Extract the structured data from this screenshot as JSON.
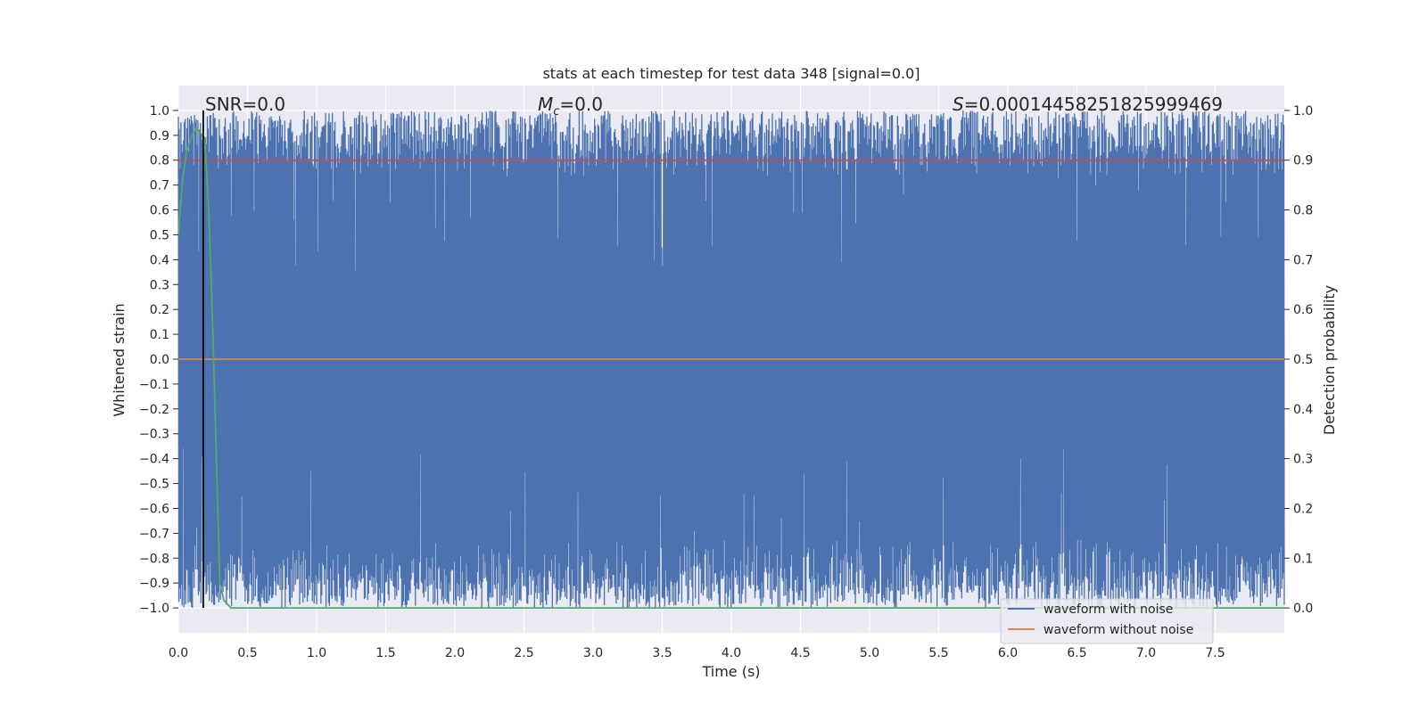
{
  "chart_data": {
    "type": "line",
    "title": "stats at each timestep for test data 348 [signal=0.0]",
    "xlabel": "Time (s)",
    "ylabel": "Whitened strain",
    "y2label": "Detection probability",
    "xlim": [
      0.0,
      8.0
    ],
    "ylim": [
      -1.1,
      1.1
    ],
    "y2lim": [
      -0.05,
      1.05
    ],
    "xticks": [
      0.0,
      0.5,
      1.0,
      1.5,
      2.0,
      2.5,
      3.0,
      3.5,
      4.0,
      4.5,
      5.0,
      5.5,
      6.0,
      6.5,
      7.0,
      7.5
    ],
    "xtick_labels": [
      "0.0",
      "0.5",
      "1.0",
      "1.5",
      "2.0",
      "2.5",
      "3.0",
      "3.5",
      "4.0",
      "4.5",
      "5.0",
      "5.5",
      "6.0",
      "6.5",
      "7.0",
      "7.5"
    ],
    "yticks": [
      1.0,
      0.9,
      0.8,
      0.7,
      0.6,
      0.5,
      0.4,
      0.3,
      0.2,
      0.1,
      0.0,
      -0.1,
      -0.2,
      -0.3,
      -0.4,
      -0.5,
      -0.6,
      -0.7,
      -0.8,
      -0.9,
      -1.0
    ],
    "ytick_labels": [
      "1.0",
      "0.9",
      "0.8",
      "0.7",
      "0.6",
      "0.5",
      "0.4",
      "0.3",
      "0.2",
      "0.1",
      "0.0",
      "−0.1",
      "−0.2",
      "−0.3",
      "−0.4",
      "−0.5",
      "−0.6",
      "−0.7",
      "−0.8",
      "−0.9",
      "−1.0"
    ],
    "y2ticks": [
      1.0,
      0.9,
      0.8,
      0.7,
      0.6,
      0.5,
      0.4,
      0.3,
      0.2,
      0.1,
      0.0
    ],
    "y2tick_labels": [
      "1.0",
      "0.9",
      "0.8",
      "0.7",
      "0.6",
      "0.5",
      "0.4",
      "0.3",
      "0.2",
      "0.1",
      "0.0"
    ],
    "grid": true,
    "legend_placement": "lower-right",
    "annotations": {
      "snr": "SNR=0.0",
      "mc_symbol": "M",
      "mc_subscript": "c",
      "mc_value": "=0.0",
      "s_symbol": "S",
      "s_value": "=0.00014458251825999469"
    },
    "marker_line_x": 0.18,
    "series": [
      {
        "name": "waveform with noise",
        "color": "#4c72b0",
        "axis": "left",
        "noise": {
          "t_start": 0.0,
          "t_end": 8.0,
          "envelope_upper": [
            0.72,
            1.0
          ],
          "envelope_lower": [
            -1.0,
            -0.72
          ]
        }
      },
      {
        "name": "waveform without noise",
        "color": "#dd8452",
        "axis": "left",
        "x": [
          0.0,
          8.0
        ],
        "values": [
          0.0,
          0.0
        ]
      },
      {
        "color": "#c44e52",
        "axis": "right",
        "x": [
          0.0,
          8.0
        ],
        "values": [
          0.9,
          0.9
        ]
      },
      {
        "color": "#55a868",
        "axis": "right",
        "x": [
          0.0,
          0.03,
          0.06,
          0.1,
          0.13,
          0.16,
          0.19,
          0.22,
          0.25,
          0.28,
          0.3,
          0.33,
          0.38,
          0.45,
          0.6,
          0.8,
          1.0,
          2.0,
          4.0,
          6.0,
          8.0
        ],
        "values": [
          0.75,
          0.86,
          0.92,
          0.95,
          0.965,
          0.955,
          0.945,
          0.8,
          0.55,
          0.25,
          0.05,
          0.015,
          0.0,
          0.0,
          0.0,
          0.0,
          0.0,
          0.0,
          0.0,
          0.0,
          0.0
        ]
      }
    ]
  }
}
